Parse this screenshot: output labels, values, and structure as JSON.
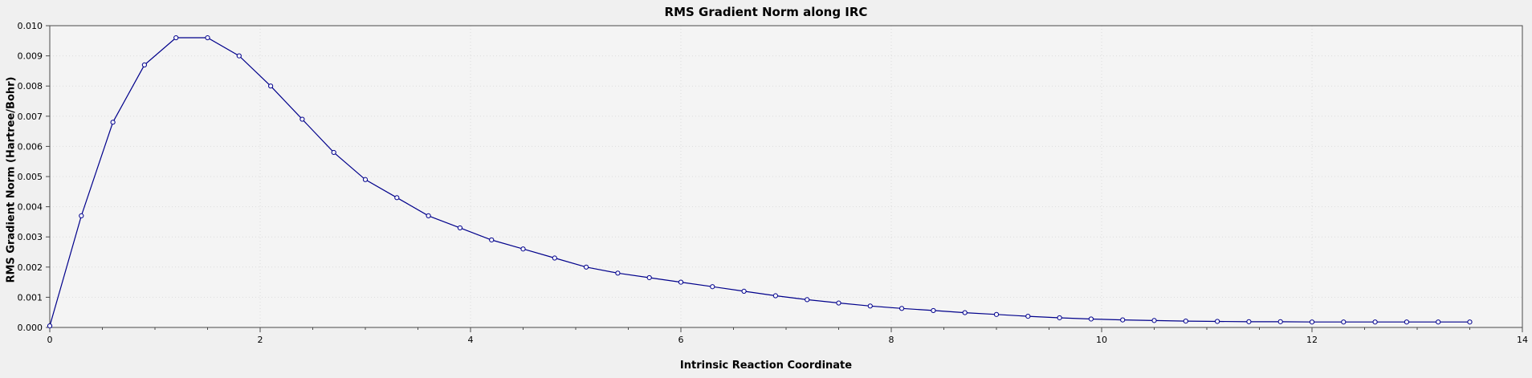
{
  "chart_data": {
    "type": "line",
    "title": "RMS Gradient Norm along IRC",
    "xlabel": "Intrinsic Reaction Coordinate",
    "ylabel": "RMS Gradient Norm (Hartree/Bohr)",
    "xlim": [
      0,
      14
    ],
    "ylim": [
      0.0,
      0.01
    ],
    "grid": "faint-dotted",
    "legend": "none",
    "line_color": "#00008B",
    "marker": "circle-open",
    "marker_fill": "#f8f8ff",
    "background_color": "#f0f0f0",
    "canvas_color": "#f4f4f4",
    "x_major_ticks": [
      0,
      2,
      4,
      6,
      8,
      10,
      12,
      14
    ],
    "x_tick_labels": [
      "0",
      "2",
      "4",
      "6",
      "8",
      "10",
      "12",
      "14"
    ],
    "x_minor_step": 0.5,
    "y_major_ticks": [
      0.0,
      0.001,
      0.002,
      0.003,
      0.004,
      0.005,
      0.006,
      0.007,
      0.008,
      0.009,
      0.01
    ],
    "y_tick_labels": [
      "0.000",
      "0.001",
      "0.002",
      "0.003",
      "0.004",
      "0.005",
      "0.006",
      "0.007",
      "0.008",
      "0.009",
      "0.010"
    ],
    "series": [
      {
        "name": "RMS gradient norm",
        "x": [
          0.0,
          0.3,
          0.6,
          0.9,
          1.2,
          1.5,
          1.8,
          2.1,
          2.4,
          2.7,
          3.0,
          3.3,
          3.6,
          3.9,
          4.2,
          4.5,
          4.8,
          5.1,
          5.4,
          5.7,
          6.0,
          6.3,
          6.6,
          6.9,
          7.2,
          7.5,
          7.8,
          8.1,
          8.4,
          8.7,
          9.0,
          9.3,
          9.6,
          9.9,
          10.2,
          10.5,
          10.8,
          11.1,
          11.4,
          11.7,
          12.0,
          12.3,
          12.6,
          12.9,
          13.2,
          13.5
        ],
        "y": [
          5e-05,
          0.0037,
          0.0068,
          0.0087,
          0.0096,
          0.0096,
          0.009,
          0.008,
          0.0069,
          0.0058,
          0.0049,
          0.0043,
          0.0037,
          0.0033,
          0.0029,
          0.0026,
          0.0023,
          0.002,
          0.0018,
          0.00165,
          0.0015,
          0.00135,
          0.0012,
          0.00105,
          0.00092,
          0.00081,
          0.00071,
          0.00063,
          0.00056,
          0.00049,
          0.00043,
          0.00037,
          0.00032,
          0.00028,
          0.00025,
          0.00023,
          0.00021,
          0.0002,
          0.00019,
          0.00019,
          0.00018,
          0.00018,
          0.00018,
          0.00018,
          0.00018,
          0.00018
        ]
      }
    ]
  }
}
